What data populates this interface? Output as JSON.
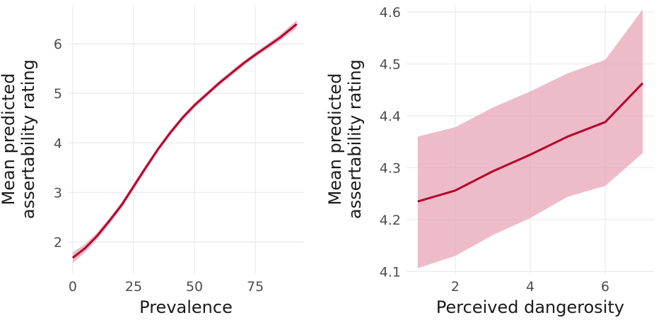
{
  "chart_data": [
    {
      "type": "line",
      "xlabel": "Prevalence",
      "ylabel": [
        "Mean predicted",
        "assertability rating"
      ],
      "xlim": [
        -2,
        95
      ],
      "ylim": [
        1.35,
        6.8
      ],
      "xticks": [
        0,
        25,
        50,
        75
      ],
      "yticks": [
        2,
        3,
        4,
        5,
        6
      ],
      "xtick_labels": [
        "0",
        "25",
        "50",
        "75"
      ],
      "ytick_labels": [
        "2",
        "3",
        "4",
        "5",
        "6"
      ],
      "grid": true,
      "series": [
        {
          "color": "#b8002a",
          "ribbon_color": "#e8a6b7",
          "x": [
            0,
            5,
            10,
            15,
            20,
            25,
            30,
            35,
            40,
            45,
            50,
            55,
            60,
            65,
            70,
            75,
            80,
            85,
            92
          ],
          "y": [
            1.68,
            1.87,
            2.12,
            2.42,
            2.74,
            3.12,
            3.5,
            3.87,
            4.2,
            4.5,
            4.76,
            4.98,
            5.2,
            5.4,
            5.6,
            5.78,
            5.95,
            6.12,
            6.4
          ],
          "lower": [
            1.57,
            1.79,
            2.05,
            2.36,
            2.68,
            3.06,
            3.44,
            3.82,
            4.15,
            4.45,
            4.71,
            4.94,
            5.15,
            5.35,
            5.55,
            5.73,
            5.9,
            6.06,
            6.32
          ],
          "upper": [
            1.79,
            1.95,
            2.19,
            2.48,
            2.8,
            3.18,
            3.56,
            3.92,
            4.25,
            4.55,
            4.81,
            5.03,
            5.25,
            5.45,
            5.65,
            5.83,
            6.0,
            6.18,
            6.48
          ]
        }
      ]
    },
    {
      "type": "line",
      "xlabel": "Perceived dangerosity",
      "ylabel": [
        "Mean predicted",
        "assertability rating"
      ],
      "xlim": [
        0.7,
        7.3
      ],
      "ylim": [
        4.095,
        4.615
      ],
      "xticks": [
        2,
        4,
        6
      ],
      "yticks": [
        4.1,
        4.2,
        4.3,
        4.4,
        4.5,
        4.6
      ],
      "xtick_labels": [
        "2",
        "4",
        "6"
      ],
      "ytick_labels": [
        "4.1",
        "4.2",
        "4.3",
        "4.4",
        "4.5",
        "4.6"
      ],
      "grid": true,
      "series": [
        {
          "color": "#b8002a",
          "ribbon_color": "#e8a6b7",
          "x": [
            1,
            2,
            3,
            4,
            5,
            6,
            7
          ],
          "y": [
            4.235,
            4.256,
            4.293,
            4.325,
            4.36,
            4.388,
            4.463
          ],
          "lower": [
            4.106,
            4.13,
            4.17,
            4.203,
            4.244,
            4.265,
            4.328
          ],
          "upper": [
            4.36,
            4.378,
            4.416,
            4.447,
            4.482,
            4.508,
            4.605
          ]
        }
      ]
    }
  ]
}
